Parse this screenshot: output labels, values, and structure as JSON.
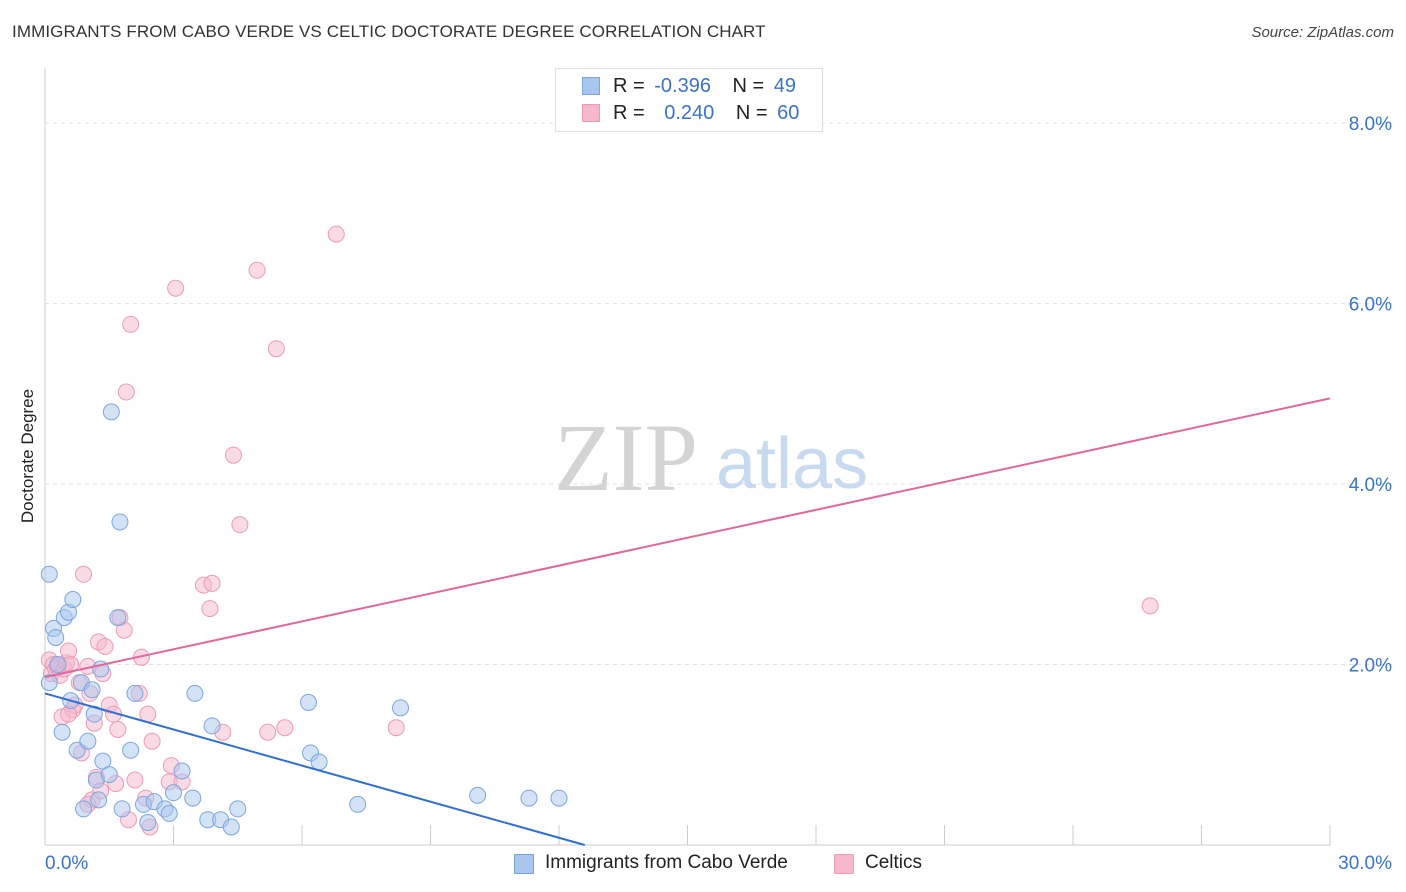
{
  "header": {
    "title": "IMMIGRANTS FROM CABO VERDE VS CELTIC DOCTORATE DEGREE CORRELATION CHART",
    "source": "Source: ZipAtlas.com"
  },
  "watermark": {
    "zip": "ZIP",
    "atlas": "atlas"
  },
  "legend": {
    "series1": {
      "r_label": "R =",
      "r_value": "-0.396",
      "n_label": "N =",
      "n_value": "49"
    },
    "series2": {
      "r_label": "R =",
      "r_value": "0.240",
      "n_label": "N =",
      "n_value": "60"
    }
  },
  "bottom_legend": {
    "series1": "Immigrants from Cabo Verde",
    "series2": "Celtics"
  },
  "colors": {
    "blue": "#2e6fd1",
    "blue_fill": "#a9c6ee",
    "blue_stroke": "#7aa6e0",
    "pink": "#e0689a",
    "pink_fill": "#f5b8cc",
    "pink_stroke": "#ee9ab7",
    "tick_label": "#3a73c8",
    "grid": "#e0e0e0"
  },
  "chart_data": {
    "type": "scatter",
    "title": "IMMIGRANTS FROM CABO VERDE VS CELTIC DOCTORATE DEGREE CORRELATION CHART",
    "xlabel": "",
    "ylabel": "Doctorate Degree",
    "xlim": [
      0,
      30
    ],
    "ylim": [
      0,
      8.5
    ],
    "x_tick_labels": [
      "0.0%",
      "30.0%"
    ],
    "y_ticks": [
      2,
      4,
      6,
      8
    ],
    "y_tick_labels": [
      "2.0%",
      "4.0%",
      "6.0%",
      "8.0%"
    ],
    "grid": true,
    "series": [
      {
        "name": "Immigrants from Cabo Verde",
        "color": "blue",
        "trend": {
          "x": [
            0,
            12.6
          ],
          "y": [
            1.68,
            0.0
          ]
        },
        "points": [
          [
            0.1,
            3.0
          ],
          [
            0.2,
            2.4
          ],
          [
            0.25,
            2.3
          ],
          [
            0.45,
            2.52
          ],
          [
            0.55,
            2.58
          ],
          [
            0.65,
            2.72
          ],
          [
            0.1,
            1.8
          ],
          [
            0.4,
            1.25
          ],
          [
            0.6,
            1.6
          ],
          [
            0.75,
            1.05
          ],
          [
            0.85,
            1.8
          ],
          [
            1.0,
            1.15
          ],
          [
            1.1,
            1.72
          ],
          [
            1.15,
            1.45
          ],
          [
            1.2,
            0.72
          ],
          [
            1.25,
            0.5
          ],
          [
            1.3,
            1.95
          ],
          [
            1.35,
            0.93
          ],
          [
            1.5,
            0.78
          ],
          [
            1.55,
            4.8
          ],
          [
            1.7,
            2.52
          ],
          [
            1.75,
            3.58
          ],
          [
            1.8,
            0.4
          ],
          [
            2.0,
            1.05
          ],
          [
            2.1,
            1.68
          ],
          [
            2.3,
            0.45
          ],
          [
            2.4,
            0.25
          ],
          [
            2.55,
            0.48
          ],
          [
            2.8,
            0.4
          ],
          [
            2.9,
            0.35
          ],
          [
            3.0,
            0.58
          ],
          [
            3.2,
            0.82
          ],
          [
            3.45,
            0.52
          ],
          [
            3.5,
            1.68
          ],
          [
            3.8,
            0.28
          ],
          [
            3.9,
            1.32
          ],
          [
            4.1,
            0.28
          ],
          [
            4.35,
            0.2
          ],
          [
            4.5,
            0.4
          ],
          [
            6.15,
            1.58
          ],
          [
            6.2,
            1.02
          ],
          [
            6.4,
            0.92
          ],
          [
            7.3,
            0.45
          ],
          [
            8.3,
            1.52
          ],
          [
            10.1,
            0.55
          ],
          [
            11.3,
            0.52
          ],
          [
            12.0,
            0.52
          ],
          [
            0.3,
            2.0
          ],
          [
            0.9,
            0.4
          ]
        ]
      },
      {
        "name": "Celtics",
        "color": "pink",
        "trend": {
          "x": [
            0,
            30
          ],
          "y": [
            1.86,
            4.95
          ]
        },
        "points": [
          [
            0.1,
            2.05
          ],
          [
            0.15,
            1.9
          ],
          [
            0.2,
            2.0
          ],
          [
            0.25,
            1.95
          ],
          [
            0.3,
            1.98
          ],
          [
            0.35,
            1.88
          ],
          [
            0.4,
            1.42
          ],
          [
            0.45,
            1.95
          ],
          [
            0.5,
            2.02
          ],
          [
            0.55,
            2.15
          ],
          [
            0.6,
            2.0
          ],
          [
            0.65,
            1.5
          ],
          [
            0.7,
            1.55
          ],
          [
            0.8,
            1.8
          ],
          [
            0.85,
            1.02
          ],
          [
            0.9,
            3.0
          ],
          [
            1.0,
            1.98
          ],
          [
            1.05,
            1.68
          ],
          [
            1.1,
            0.5
          ],
          [
            1.15,
            1.35
          ],
          [
            1.2,
            0.75
          ],
          [
            1.25,
            2.25
          ],
          [
            1.3,
            0.6
          ],
          [
            1.35,
            1.9
          ],
          [
            1.4,
            2.2
          ],
          [
            1.5,
            1.55
          ],
          [
            1.6,
            1.45
          ],
          [
            1.65,
            0.68
          ],
          [
            1.7,
            1.28
          ],
          [
            1.75,
            2.52
          ],
          [
            1.85,
            2.38
          ],
          [
            1.9,
            5.02
          ],
          [
            1.95,
            0.28
          ],
          [
            2.0,
            5.77
          ],
          [
            2.1,
            0.72
          ],
          [
            2.2,
            1.68
          ],
          [
            2.25,
            2.08
          ],
          [
            2.35,
            0.52
          ],
          [
            2.4,
            1.45
          ],
          [
            2.45,
            0.2
          ],
          [
            2.5,
            1.15
          ],
          [
            2.9,
            0.7
          ],
          [
            2.95,
            0.88
          ],
          [
            3.05,
            6.17
          ],
          [
            3.2,
            0.7
          ],
          [
            3.7,
            2.88
          ],
          [
            3.85,
            2.62
          ],
          [
            3.9,
            2.9
          ],
          [
            4.15,
            1.25
          ],
          [
            4.4,
            4.32
          ],
          [
            4.55,
            3.55
          ],
          [
            4.95,
            6.37
          ],
          [
            5.2,
            1.25
          ],
          [
            5.4,
            5.5
          ],
          [
            5.6,
            1.3
          ],
          [
            6.8,
            6.77
          ],
          [
            8.2,
            1.3
          ],
          [
            25.8,
            2.65
          ],
          [
            0.55,
            1.45
          ],
          [
            1.0,
            0.45
          ]
        ]
      }
    ]
  }
}
